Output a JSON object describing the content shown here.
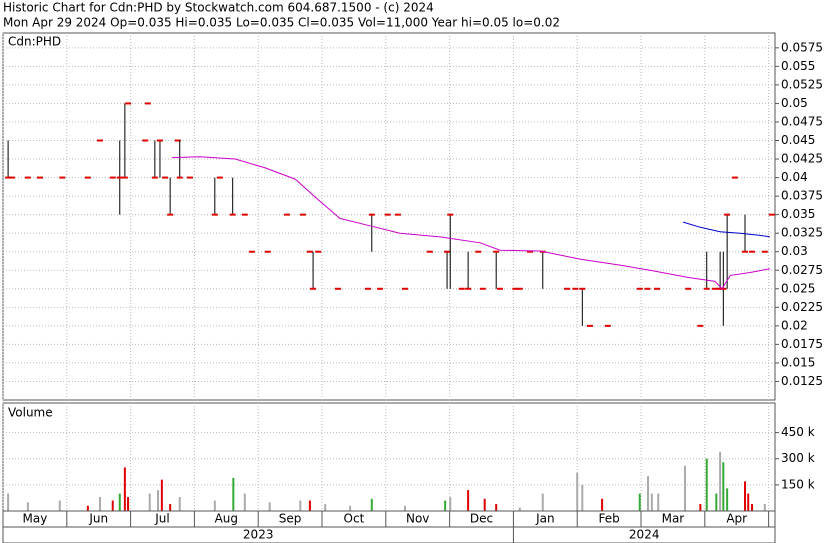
{
  "header": {
    "title": "Historic Chart for Cdn:PHD by Stockwatch.com 604.687.1500 - (c) 2024",
    "info": "Mon Apr 29 2024  Op=0.035  Hi=0.035  Lo=0.035  Cl=0.035  Vol=11,000  Year hi=0.05  lo=0.02"
  },
  "chart_data": [
    {
      "type": "stock",
      "label": "Cdn:PHD",
      "xlim": [
        0,
        12.1
      ],
      "ylim": [
        0.01,
        0.0595
      ],
      "yticks": [
        0.0575,
        0.055,
        0.0525,
        0.05,
        0.0475,
        0.045,
        0.0425,
        0.04,
        0.0375,
        0.035,
        0.0325,
        0.03,
        0.0275,
        0.025,
        0.0225,
        0.02,
        0.0175,
        0.015,
        0.0125
      ],
      "grid": true,
      "range_color": "#000000",
      "close_color": "#e00000",
      "x": [
        0.08,
        0.14,
        0.39,
        0.58,
        0.93,
        1.33,
        1.52,
        1.72,
        1.83,
        1.91,
        1.96,
        2.27,
        2.23,
        2.38,
        2.46,
        2.54,
        2.62,
        2.74,
        2.77,
        2.93,
        3.32,
        3.4,
        3.6,
        3.79,
        3.9,
        4.15,
        4.45,
        4.7,
        4.81,
        4.86,
        4.94,
        5.25,
        5.72,
        5.78,
        5.91,
        6.03,
        6.19,
        6.3,
        6.69,
        6.96,
        7.01,
        7.19,
        7.29,
        7.45,
        7.52,
        7.73,
        7.79,
        8.03,
        8.1,
        8.26,
        8.46,
        8.84,
        8.97,
        9.08,
        9.2,
        9.48,
        9.98,
        10.1,
        10.25,
        10.74,
        10.93,
        11.03,
        11.16,
        11.24,
        11.29,
        11.35,
        11.47,
        11.63,
        11.74,
        11.94,
        12.05
      ],
      "high": [
        0.045,
        0.04,
        0.04,
        0.04,
        0.04,
        0.04,
        0.045,
        0.04,
        0.045,
        0.05,
        0.05,
        0.05,
        0.045,
        0.045,
        0.045,
        0.04,
        0.04,
        0.045,
        0.045,
        0.04,
        0.04,
        0.04,
        0.04,
        0.035,
        0.03,
        0.03,
        0.035,
        0.035,
        0.03,
        0.03,
        0.03,
        0.025,
        0.025,
        0.035,
        0.025,
        0.035,
        0.035,
        0.025,
        0.03,
        0.03,
        0.035,
        0.025,
        0.03,
        0.03,
        0.025,
        0.03,
        0.025,
        0.025,
        0.025,
        0.03,
        0.03,
        0.025,
        0.025,
        0.025,
        0.02,
        0.02,
        0.025,
        0.025,
        0.025,
        0.025,
        0.02,
        0.03,
        0.025,
        0.03,
        0.03,
        0.035,
        0.04,
        0.035,
        0.03,
        0.03,
        0.035
      ],
      "low": [
        0.04,
        0.04,
        0.04,
        0.04,
        0.04,
        0.04,
        0.045,
        0.04,
        0.035,
        0.04,
        0.05,
        0.05,
        0.045,
        0.04,
        0.04,
        0.04,
        0.035,
        0.045,
        0.04,
        0.04,
        0.035,
        0.04,
        0.035,
        0.035,
        0.03,
        0.03,
        0.035,
        0.035,
        0.03,
        0.025,
        0.03,
        0.025,
        0.025,
        0.03,
        0.025,
        0.035,
        0.035,
        0.025,
        0.03,
        0.025,
        0.025,
        0.025,
        0.025,
        0.03,
        0.025,
        0.025,
        0.025,
        0.025,
        0.025,
        0.03,
        0.025,
        0.025,
        0.025,
        0.02,
        0.02,
        0.02,
        0.025,
        0.025,
        0.025,
        0.025,
        0.02,
        0.025,
        0.025,
        0.025,
        0.02,
        0.025,
        0.04,
        0.03,
        0.03,
        0.03,
        0.035
      ],
      "close": [
        0.04,
        0.04,
        0.04,
        0.04,
        0.04,
        0.04,
        0.045,
        0.04,
        0.04,
        0.04,
        0.05,
        0.05,
        0.045,
        0.04,
        0.045,
        0.04,
        0.035,
        0.045,
        0.04,
        0.04,
        0.035,
        0.04,
        0.035,
        0.035,
        0.03,
        0.03,
        0.035,
        0.035,
        0.03,
        0.025,
        0.03,
        0.025,
        0.025,
        0.035,
        0.025,
        0.035,
        0.035,
        0.025,
        0.03,
        0.03,
        0.035,
        0.025,
        0.025,
        0.03,
        0.025,
        0.03,
        0.025,
        0.025,
        0.025,
        0.03,
        0.03,
        0.025,
        0.025,
        0.025,
        0.02,
        0.02,
        0.025,
        0.025,
        0.025,
        0.025,
        0.02,
        0.025,
        0.025,
        0.025,
        0.025,
        0.035,
        0.04,
        0.03,
        0.03,
        0.03,
        0.035
      ],
      "series": [
        {
          "color": "#cc00cc",
          "x": [
            2.65,
            3.09,
            3.64,
            4.11,
            4.58,
            4.94,
            5.28,
            5.75,
            6.22,
            6.85,
            7.48,
            7.79,
            8.42,
            9.04,
            9.67,
            10.14,
            10.77,
            11.16,
            11.27,
            11.4,
            11.71,
            12.02
          ],
          "values": [
            0.0427,
            0.0428,
            0.0425,
            0.0413,
            0.0398,
            0.037,
            0.0345,
            0.0335,
            0.0325,
            0.032,
            0.0312,
            0.0302,
            0.0301,
            0.029,
            0.0282,
            0.0275,
            0.0265,
            0.026,
            0.025,
            0.0268,
            0.0272,
            0.0277
          ]
        },
        {
          "color": "#0000cc",
          "x": [
            10.66,
            10.93,
            11.24,
            11.55,
            11.87,
            12.02
          ],
          "values": [
            0.034,
            0.0333,
            0.0327,
            0.0325,
            0.0322,
            0.032
          ]
        }
      ]
    },
    {
      "type": "bar",
      "label": "Volume",
      "xlim": [
        0,
        12.1
      ],
      "ylim": [
        0,
        620000
      ],
      "yticks": [
        {
          "value": 450000,
          "label": "450 k"
        },
        {
          "value": 300000,
          "label": "300 k"
        },
        {
          "value": 150000,
          "label": "150 k"
        }
      ],
      "grid": true,
      "categories": [
        "May",
        "Jun",
        "Jul",
        "Aug",
        "Sep",
        "Oct",
        "Nov",
        "Dec",
        "Jan",
        "Feb",
        "Mar",
        "Apr"
      ],
      "xticks": [
        0,
        1,
        2,
        3,
        4,
        5,
        6,
        7,
        8,
        9,
        10,
        11,
        12
      ],
      "years": [
        "2023",
        "2024"
      ],
      "x": [
        0.08,
        0.39,
        0.89,
        1.33,
        1.52,
        1.72,
        1.83,
        1.91,
        1.96,
        2.3,
        2.43,
        2.49,
        2.62,
        2.77,
        3.32,
        3.61,
        3.79,
        4.18,
        4.66,
        4.81,
        5.05,
        5.44,
        5.78,
        6.3,
        6.93,
        7.01,
        7.29,
        7.55,
        7.73,
        8.1,
        8.46,
        9.0,
        9.08,
        9.39,
        9.98,
        10.11,
        10.17,
        10.27,
        10.69,
        10.93,
        11.03,
        11.18,
        11.24,
        11.29,
        11.35,
        11.63,
        11.68,
        11.74,
        11.94
      ],
      "values": [
        100000,
        50000,
        60000,
        30000,
        80000,
        60000,
        100000,
        250000,
        80000,
        100000,
        120000,
        180000,
        40000,
        80000,
        60000,
        190000,
        100000,
        50000,
        60000,
        60000,
        40000,
        30000,
        70000,
        30000,
        60000,
        80000,
        120000,
        70000,
        40000,
        20000,
        100000,
        220000,
        150000,
        70000,
        100000,
        200000,
        100000,
        100000,
        260000,
        40000,
        300000,
        100000,
        340000,
        280000,
        130000,
        170000,
        100000,
        40000,
        40000
      ],
      "colors": [
        "#aaaaaa",
        "#aaaaaa",
        "#aaaaaa",
        "#e00000",
        "#aaaaaa",
        "#e00000",
        "#33aa33",
        "#e00000",
        "#e00000",
        "#aaaaaa",
        "#aaaaaa",
        "#e00000",
        "#e00000",
        "#aaaaaa",
        "#aaaaaa",
        "#33aa33",
        "#aaaaaa",
        "#aaaaaa",
        "#aaaaaa",
        "#e00000",
        "#aaaaaa",
        "#aaaaaa",
        "#33aa33",
        "#aaaaaa",
        "#33aa33",
        "#aaaaaa",
        "#e00000",
        "#e00000",
        "#e00000",
        "#aaaaaa",
        "#aaaaaa",
        "#aaaaaa",
        "#aaaaaa",
        "#e00000",
        "#33aa33",
        "#aaaaaa",
        "#aaaaaa",
        "#aaaaaa",
        "#aaaaaa",
        "#e00000",
        "#33aa33",
        "#33aa33",
        "#aaaaaa",
        "#33aa33",
        "#33aa33",
        "#e00000",
        "#e00000",
        "#e00000",
        "#aaaaaa"
      ]
    }
  ]
}
